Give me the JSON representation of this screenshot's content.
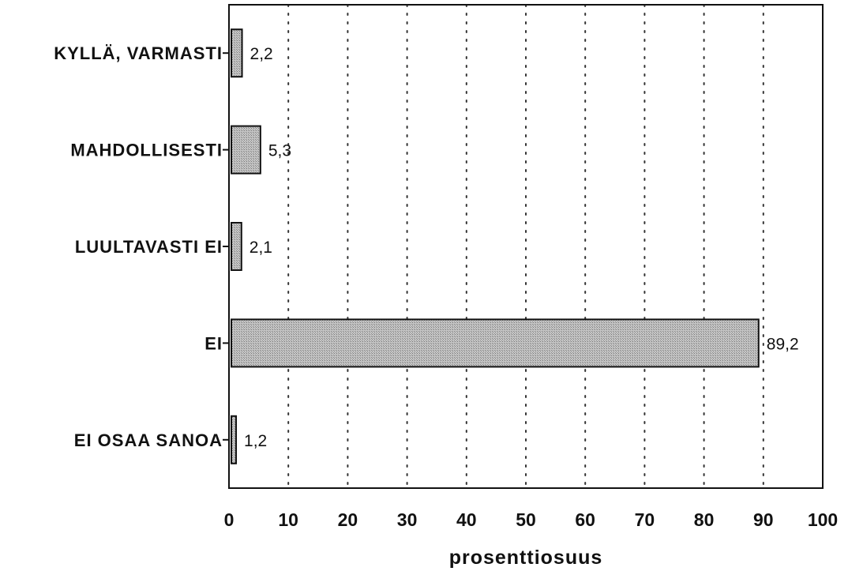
{
  "chart_data": {
    "type": "bar",
    "orientation": "horizontal",
    "categories": [
      "KYLLÄ, VARMASTI",
      "MAHDOLLISESTI",
      "LUULTAVASTI EI",
      "EI",
      "EI OSAA SANOA"
    ],
    "values": [
      2.2,
      5.3,
      2.1,
      89.2,
      1.2
    ],
    "value_labels": [
      "2,2",
      "5,3",
      "2,1",
      "89,2",
      "1,2"
    ],
    "xlabel": "prosenttiosuus",
    "ylabel": "",
    "xlim": [
      0,
      100
    ],
    "xticks": [
      0,
      10,
      20,
      30,
      40,
      50,
      60,
      70,
      80,
      90,
      100
    ],
    "xtick_labels": [
      "0",
      "10",
      "20",
      "30",
      "40",
      "50",
      "60",
      "70",
      "80",
      "90",
      "100"
    ],
    "grid": "vertical dotted",
    "legend": "none",
    "colors": {
      "bar_fill": "#b8b8b8",
      "bar_stroke": "#111111",
      "grid": "#333333",
      "axis": "#111111"
    }
  }
}
